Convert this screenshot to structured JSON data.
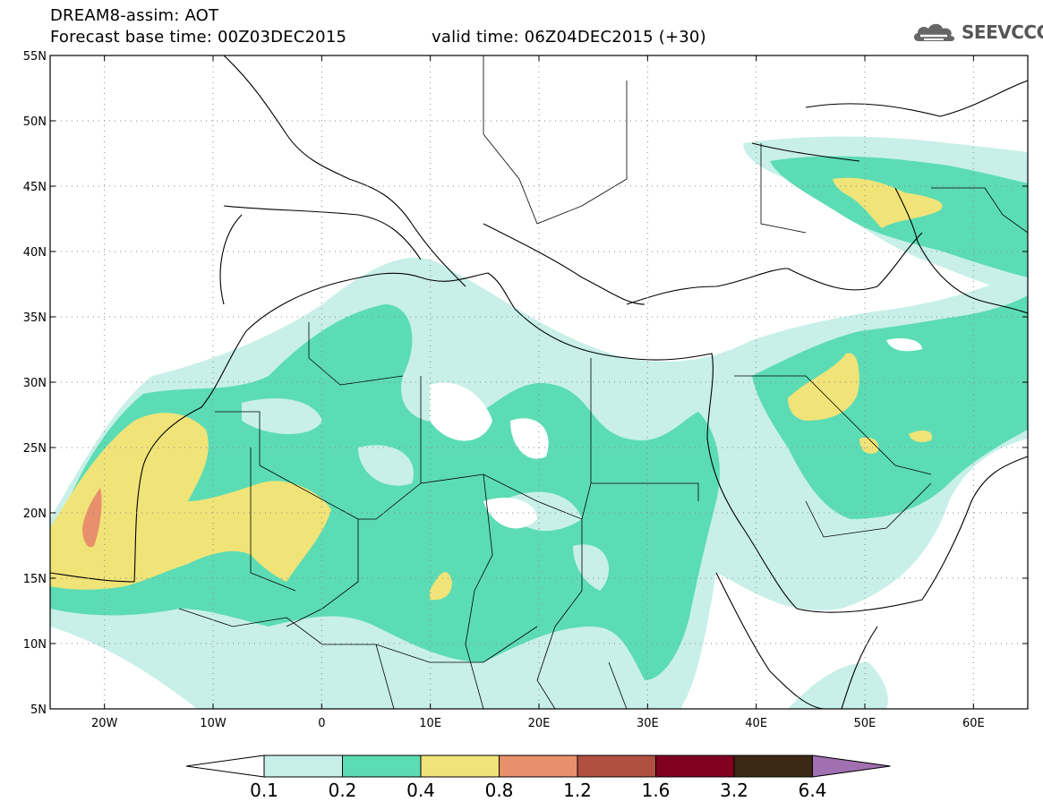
{
  "header": {
    "line1": "DREAM8-assim: AOT",
    "line2": "Forecast base time: 00Z03DEC2015",
    "line3": "valid time: 06Z04DEC2015 (+30)"
  },
  "logo": {
    "text": "SEEVCCC",
    "icon": "cloud-icon"
  },
  "map": {
    "lat_labels": [
      "55N",
      "50N",
      "45N",
      "40N",
      "35N",
      "30N",
      "25N",
      "20N",
      "15N",
      "10N",
      "5N"
    ],
    "lon_labels": [
      "20W",
      "10W",
      "0",
      "10E",
      "20E",
      "30E",
      "40E",
      "50E",
      "60E"
    ]
  },
  "colorbar": {
    "ticks": [
      "0.1",
      "0.2",
      "0.4",
      "0.8",
      "1.2",
      "1.6",
      "3.2",
      "6.4"
    ],
    "colors": [
      "#c8f0e8",
      "#5cdcb4",
      "#f0e478",
      "#e8906c",
      "#b05040",
      "#800020",
      "#3c2814",
      "#a070b0"
    ]
  },
  "colors": {
    "light": "#c8f0e8",
    "medium": "#5cdcb4",
    "yellow": "#f0e478",
    "orange": "#e8906c"
  }
}
